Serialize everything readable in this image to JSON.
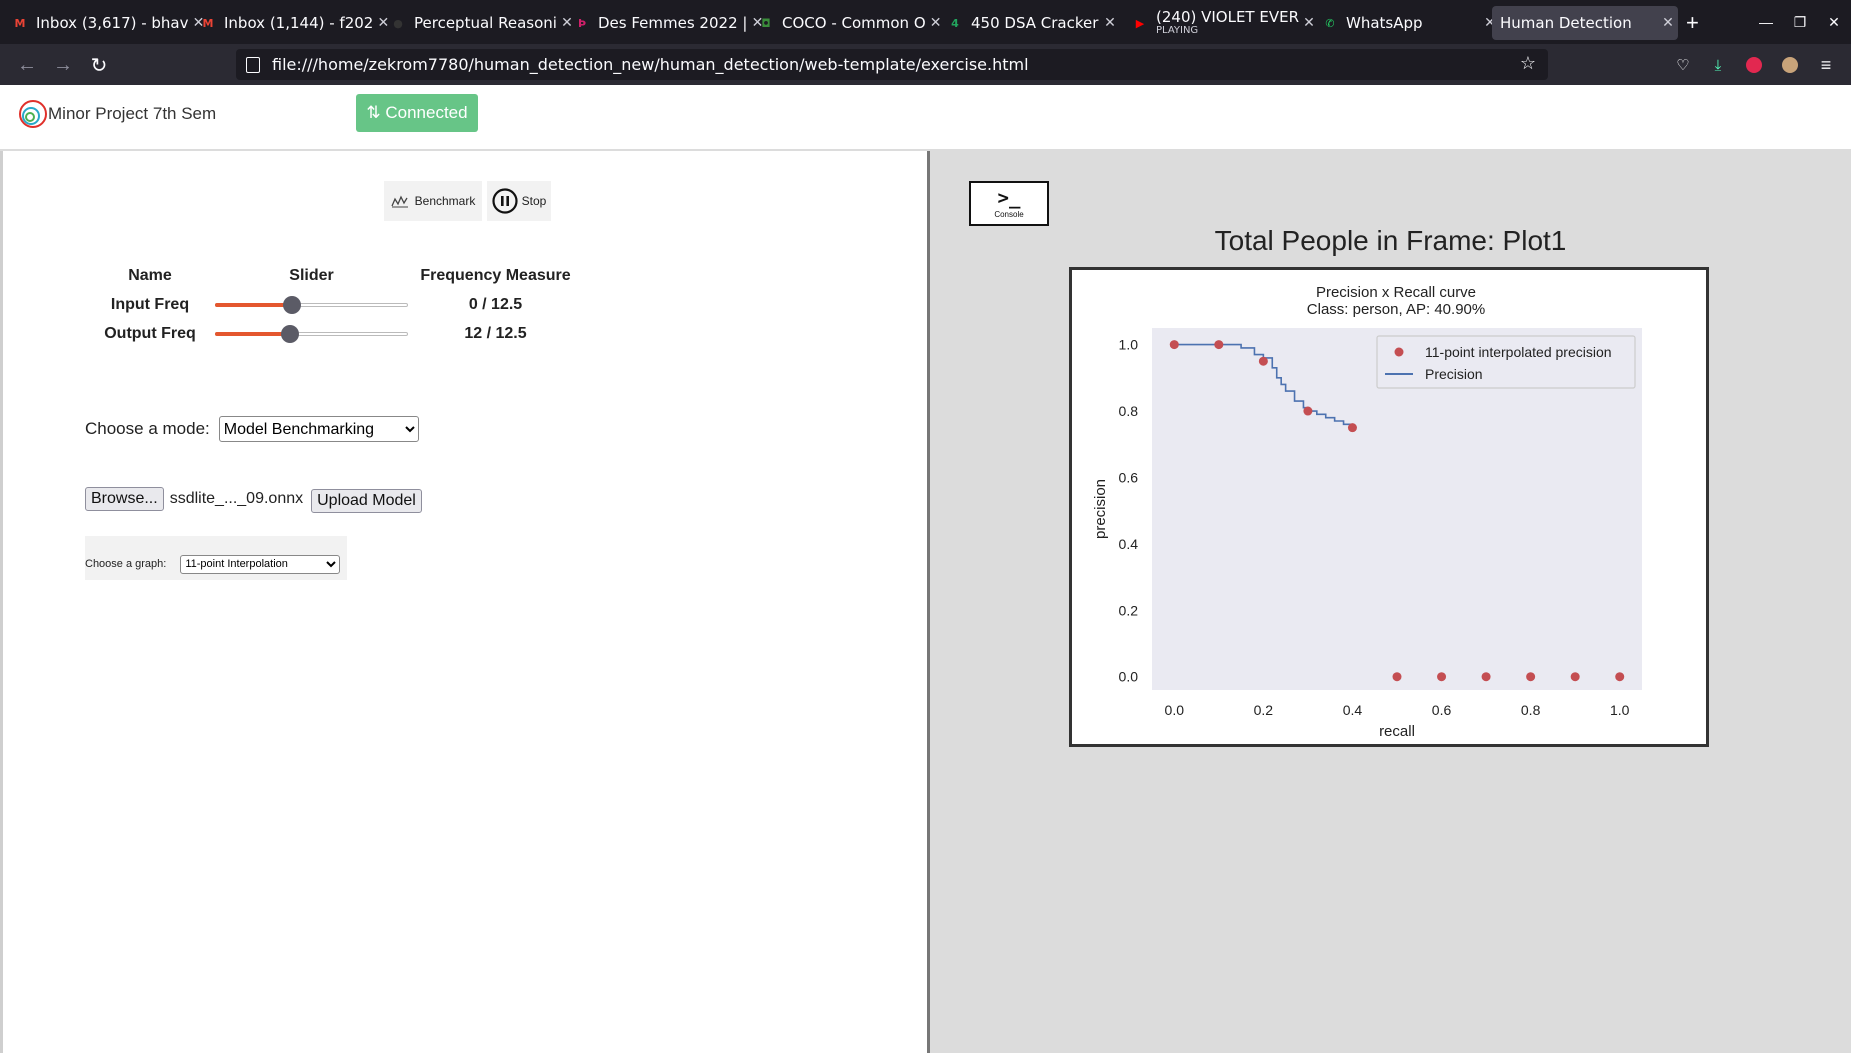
{
  "browser": {
    "tabs": [
      {
        "title": "Inbox (3,617) - bhav",
        "favicon": "gmail-icon",
        "color": "#ea4335",
        "glyph": "M"
      },
      {
        "title": "Inbox (1,144) - f202",
        "favicon": "gmail-icon",
        "color": "#ea4335",
        "glyph": "M"
      },
      {
        "title": "Perceptual Reasoni",
        "favicon": "github-icon",
        "color": "#333333",
        "glyph": "●"
      },
      {
        "title": "Des Femmes 2022 |",
        "favicon": "site-icon",
        "color": "#d0206a",
        "glyph": "Þ"
      },
      {
        "title": "COCO - Common O",
        "favicon": "coco-icon",
        "color": "#3a8d3a",
        "glyph": "◘"
      },
      {
        "title": "450 DSA Cracker",
        "favicon": "dsa-icon",
        "color": "#22a45d",
        "glyph": "4"
      },
      {
        "title": "(240) VIOLET EVER",
        "subtitle": "PLAYING",
        "favicon": "youtube-icon",
        "color": "#ff0000",
        "glyph": "▶"
      },
      {
        "title": "WhatsApp",
        "favicon": "whatsapp-icon",
        "color": "#25d366",
        "glyph": "✆"
      },
      {
        "title": "Human Detection",
        "favicon": "",
        "color": "",
        "glyph": "",
        "active": true
      }
    ],
    "url": "file:///home/zekrom7780/human_detection_new/human_detection/web-template/exercise.html"
  },
  "header": {
    "brand": "Minor Project 7th Sem",
    "connection_label": "⇅ Connected",
    "connection_color": "#67c587"
  },
  "controls": {
    "benchmark_label": "Benchmark",
    "stop_label": "Stop"
  },
  "freq_table": {
    "headers": [
      "Name",
      "Slider",
      "Frequency Measure"
    ],
    "rows": [
      {
        "name": "Input Freq",
        "measure": "0 / 12.5",
        "slider_fraction": 0.4
      },
      {
        "name": "Output Freq",
        "measure": "12 / 12.5",
        "slider_fraction": 0.39
      }
    ]
  },
  "mode": {
    "label": "Choose a mode:",
    "selected": "Model Benchmarking"
  },
  "upload": {
    "browse_label": "Browse...",
    "filename": "ssdlite_..._09.onnx",
    "upload_label": "Upload Model"
  },
  "graph": {
    "label": "Choose a graph:",
    "selected": "11-point Interpolation"
  },
  "console": {
    "glyph": ">_",
    "label": "Console"
  },
  "plot": {
    "title": "Total People in Frame: Plot1"
  },
  "chart_data": {
    "type": "line",
    "title": "Precision x Recall curve",
    "subtitle": "Class: person, AP: 40.90%",
    "xlabel": "recall",
    "ylabel": "precision",
    "xlim": [
      -0.05,
      1.05
    ],
    "ylim": [
      -0.04,
      1.05
    ],
    "xticks": [
      "0.0",
      "0.2",
      "0.4",
      "0.6",
      "0.8",
      "1.0"
    ],
    "yticks": [
      "0.0",
      "0.2",
      "0.4",
      "0.6",
      "0.8",
      "1.0"
    ],
    "grid": false,
    "legend_position": "top-right",
    "series": [
      {
        "name": "11-point interpolated precision",
        "kind": "scatter",
        "color": "#c44e52",
        "x": [
          0.0,
          0.1,
          0.2,
          0.3,
          0.4,
          0.5,
          0.6,
          0.7,
          0.8,
          0.9,
          1.0
        ],
        "y": [
          1.0,
          1.0,
          0.95,
          0.8,
          0.75,
          0.0,
          0.0,
          0.0,
          0.0,
          0.0,
          0.0
        ]
      },
      {
        "name": "Precision",
        "kind": "line",
        "color": "#4c72b0",
        "x": [
          0.0,
          0.12,
          0.15,
          0.18,
          0.2,
          0.22,
          0.23,
          0.24,
          0.25,
          0.27,
          0.29,
          0.3,
          0.32,
          0.34,
          0.36,
          0.38,
          0.4
        ],
        "y": [
          1.0,
          1.0,
          0.99,
          0.97,
          0.96,
          0.93,
          0.9,
          0.88,
          0.86,
          0.83,
          0.81,
          0.8,
          0.79,
          0.78,
          0.77,
          0.76,
          0.75
        ]
      }
    ]
  }
}
